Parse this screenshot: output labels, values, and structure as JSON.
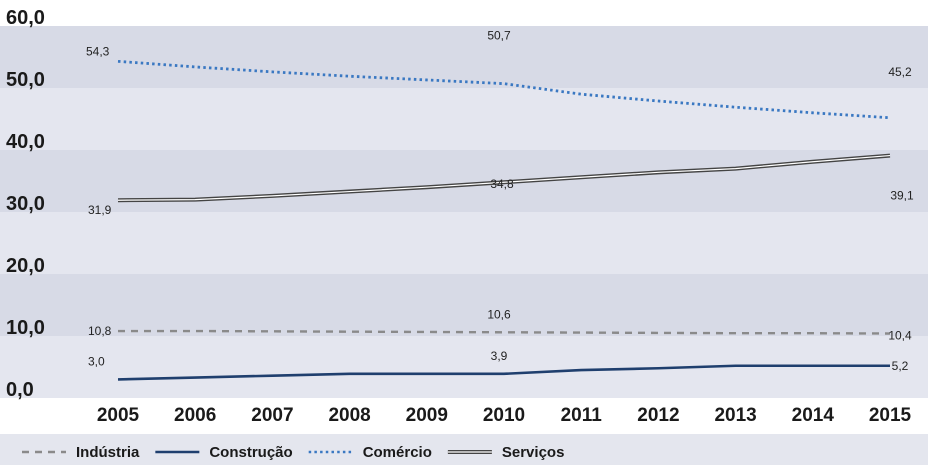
{
  "chart_data": {
    "type": "line",
    "categories": [
      "2005",
      "2006",
      "2007",
      "2008",
      "2009",
      "2010",
      "2011",
      "2012",
      "2013",
      "2014",
      "2015"
    ],
    "ylim": [
      0,
      60
    ],
    "yticks": [
      "0,0",
      "10,0",
      "20,0",
      "30,0",
      "40,0",
      "50,0",
      "60,0"
    ],
    "legend_position": "bottom",
    "series": [
      {
        "name": "Indústria",
        "color": "#8a8a8a",
        "style": "dashed",
        "values": [
          10.8,
          10.8,
          10.75,
          10.7,
          10.65,
          10.6,
          10.55,
          10.5,
          10.45,
          10.45,
          10.4
        ],
        "labels": [
          {
            "index": 0,
            "text": "10,8"
          },
          {
            "index": 5,
            "text": "10,6"
          },
          {
            "index": 10,
            "text": "10,4"
          }
        ]
      },
      {
        "name": "Construção",
        "color": "#1f3f6e",
        "style": "solid",
        "values": [
          3.0,
          3.3,
          3.6,
          3.9,
          3.9,
          3.9,
          4.5,
          4.8,
          5.2,
          5.2,
          5.2
        ],
        "labels": [
          {
            "index": 0,
            "text": "3,0"
          },
          {
            "index": 5,
            "text": "3,9"
          },
          {
            "index": 10,
            "text": "5,2"
          }
        ]
      },
      {
        "name": "Comércio",
        "color": "#3a78c2",
        "style": "dotted",
        "values": [
          54.3,
          53.4,
          52.6,
          51.9,
          51.3,
          50.7,
          49.0,
          47.9,
          46.9,
          46.0,
          45.2
        ],
        "labels": [
          {
            "index": 0,
            "text": "54,3"
          },
          {
            "index": 5,
            "text": "50,7"
          },
          {
            "index": 10,
            "text": "45,2"
          }
        ]
      },
      {
        "name": "Serviços",
        "color": "#444444",
        "style": "double",
        "values": [
          31.9,
          32.0,
          32.6,
          33.3,
          34.0,
          34.8,
          35.6,
          36.4,
          37.0,
          38.1,
          39.1
        ],
        "labels": [
          {
            "index": 0,
            "text": "31,9"
          },
          {
            "index": 5,
            "text": "34,8"
          },
          {
            "index": 10,
            "text": "39,1"
          }
        ]
      }
    ]
  }
}
